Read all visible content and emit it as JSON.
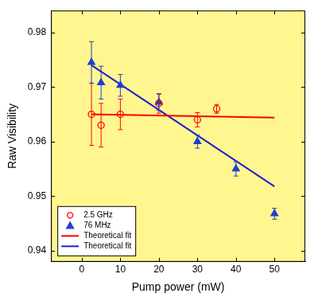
{
  "chart_data": {
    "type": "scatter",
    "x_label": "Pump power (mW)",
    "y_label": "Raw Visibility",
    "xlim": [
      -8,
      58
    ],
    "xticks": [
      0,
      10,
      20,
      30,
      40,
      50
    ],
    "ylim": [
      0.938,
      0.984
    ],
    "yticks": [
      0.94,
      0.95,
      0.96,
      0.97,
      0.98
    ],
    "grid": false,
    "legend": "lower left",
    "series": [
      {
        "name": "2.5 GHz",
        "type": "scatter",
        "marker": "circle_open",
        "color": "#ff0000",
        "x": [
          2.5,
          5,
          10,
          20,
          30,
          35
        ],
        "values": [
          0.965,
          0.963,
          0.965,
          0.967,
          0.964,
          0.966
        ],
        "errors": [
          0.0057,
          0.004,
          0.0028,
          0.0018,
          0.0013,
          0.0008
        ]
      },
      {
        "name": "76 MHz",
        "type": "scatter",
        "marker": "triangle",
        "color": "#1f3fd0",
        "x": [
          2.5,
          5,
          10,
          20,
          30,
          40,
          50
        ],
        "values": [
          0.9745,
          0.9708,
          0.9703,
          0.9672,
          0.96,
          0.955,
          0.9468
        ],
        "errors": [
          0.0038,
          0.003,
          0.002,
          0.0015,
          0.0012,
          0.0013,
          0.001
        ]
      },
      {
        "name": "Theoretical fit",
        "type": "line",
        "line_style": "solid",
        "color": "#ff0000",
        "x": [
          2.5,
          50
        ],
        "values": [
          0.965,
          0.9644
        ]
      },
      {
        "name": "Theoretical fit",
        "type": "line",
        "line_style": "solid",
        "color": "#1f1fcc",
        "x": [
          2.5,
          50
        ],
        "values": [
          0.974,
          0.9518
        ]
      }
    ]
  }
}
